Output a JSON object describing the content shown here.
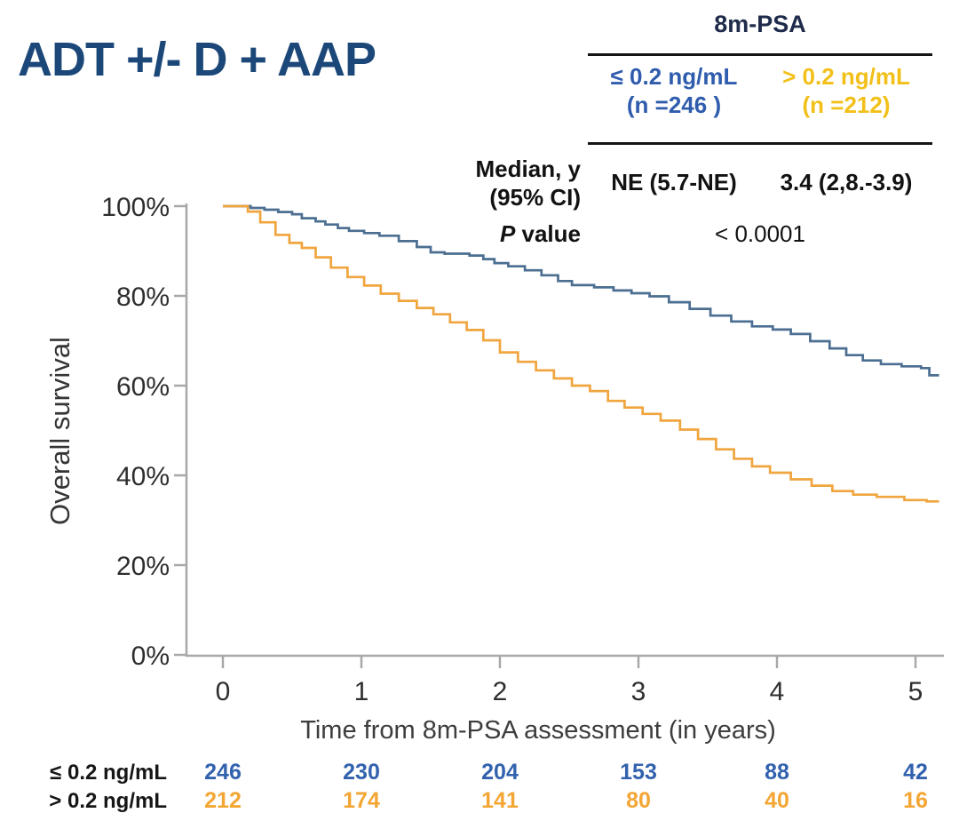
{
  "title": {
    "text": "ADT +/- D + AAP",
    "color": "#1c4879"
  },
  "summary_table": {
    "header": "8m-PSA",
    "header_color": "#1f2b4a",
    "columns": [
      {
        "range": "≤ 0.2 ng/mL",
        "n": "(n =246 )",
        "color": "#2f5cad"
      },
      {
        "range": "> 0.2 ng/mL",
        "n": "(n =212)",
        "color": "#f2c019"
      }
    ],
    "median_label_line1": "Median, y",
    "median_label_line2": "(95% CI)",
    "median_values": [
      "NE (5.7-NE)",
      "3.4 (2,8.-3.9)"
    ],
    "p_label_italic": "P",
    "p_label_rest": " value",
    "p_value": "< 0.0001"
  },
  "chart_data": {
    "type": "line",
    "subtype": "kaplan-meier-step",
    "title": "",
    "xlabel": "Time from 8m-PSA assessment (in years)",
    "ylabel": "Overall survival",
    "xlim": [
      0,
      5.2
    ],
    "ylim": [
      0,
      100
    ],
    "xticks": [
      0,
      1,
      2,
      3,
      4,
      5
    ],
    "yticks": [
      0,
      20,
      40,
      60,
      80,
      100
    ],
    "ytick_suffix": "%",
    "grid": false,
    "legend_position": "none",
    "axis_color": "#a8a8a8",
    "series": [
      {
        "name": "≤ 0.2 ng/mL",
        "color": "#4b6e91",
        "points": [
          [
            0,
            100
          ],
          [
            0.13,
            100
          ],
          [
            0.2,
            99.6
          ],
          [
            0.3,
            99.2
          ],
          [
            0.4,
            98.7
          ],
          [
            0.5,
            98.2
          ],
          [
            0.57,
            97.3
          ],
          [
            0.67,
            96.6
          ],
          [
            0.74,
            95.9
          ],
          [
            0.83,
            95.1
          ],
          [
            0.91,
            94.5
          ],
          [
            1.02,
            94.0
          ],
          [
            1.13,
            93.4
          ],
          [
            1.27,
            92.2
          ],
          [
            1.4,
            90.9
          ],
          [
            1.5,
            89.7
          ],
          [
            1.6,
            89.4
          ],
          [
            1.78,
            89.0
          ],
          [
            1.88,
            88.2
          ],
          [
            1.96,
            87.3
          ],
          [
            2.06,
            86.6
          ],
          [
            2.18,
            85.7
          ],
          [
            2.3,
            84.6
          ],
          [
            2.42,
            83.3
          ],
          [
            2.52,
            82.4
          ],
          [
            2.68,
            81.9
          ],
          [
            2.82,
            81.2
          ],
          [
            2.95,
            80.6
          ],
          [
            3.08,
            79.9
          ],
          [
            3.22,
            78.6
          ],
          [
            3.37,
            77.1
          ],
          [
            3.52,
            75.6
          ],
          [
            3.67,
            74.3
          ],
          [
            3.82,
            73.2
          ],
          [
            3.97,
            72.5
          ],
          [
            4.1,
            71.5
          ],
          [
            4.24,
            69.9
          ],
          [
            4.38,
            68.3
          ],
          [
            4.5,
            66.8
          ],
          [
            4.62,
            65.6
          ],
          [
            4.75,
            64.8
          ],
          [
            4.9,
            64.3
          ],
          [
            5.04,
            63.9
          ],
          [
            5.1,
            62.3
          ],
          [
            5.17,
            62.3
          ]
        ]
      },
      {
        "name": "> 0.2 ng/mL",
        "color": "#f0a53e",
        "points": [
          [
            0,
            100
          ],
          [
            0.12,
            100
          ],
          [
            0.18,
            98.8
          ],
          [
            0.27,
            96.4
          ],
          [
            0.38,
            93.6
          ],
          [
            0.48,
            91.8
          ],
          [
            0.57,
            90.7
          ],
          [
            0.67,
            88.6
          ],
          [
            0.78,
            86.3
          ],
          [
            0.9,
            84.2
          ],
          [
            1.02,
            82.3
          ],
          [
            1.14,
            80.5
          ],
          [
            1.27,
            78.9
          ],
          [
            1.4,
            77.3
          ],
          [
            1.52,
            75.9
          ],
          [
            1.64,
            74.1
          ],
          [
            1.76,
            72.4
          ],
          [
            1.88,
            70.1
          ],
          [
            2.0,
            67.4
          ],
          [
            2.13,
            65.3
          ],
          [
            2.26,
            63.4
          ],
          [
            2.39,
            61.6
          ],
          [
            2.52,
            60.0
          ],
          [
            2.65,
            58.8
          ],
          [
            2.78,
            56.6
          ],
          [
            2.9,
            55.1
          ],
          [
            3.03,
            53.7
          ],
          [
            3.16,
            52.2
          ],
          [
            3.3,
            50.2
          ],
          [
            3.43,
            48.1
          ],
          [
            3.56,
            45.8
          ],
          [
            3.69,
            43.7
          ],
          [
            3.82,
            42.0
          ],
          [
            3.95,
            40.6
          ],
          [
            4.1,
            39.1
          ],
          [
            4.25,
            37.7
          ],
          [
            4.4,
            36.5
          ],
          [
            4.55,
            35.7
          ],
          [
            4.72,
            35.2
          ],
          [
            4.92,
            34.5
          ],
          [
            5.08,
            34.2
          ],
          [
            5.17,
            34.2
          ]
        ]
      }
    ]
  },
  "risk_table": {
    "rows": [
      {
        "label": "≤ 0.2 ng/mL",
        "color": "#3262ae",
        "counts": [
          "246",
          "230",
          "204",
          "153",
          "88",
          "42"
        ]
      },
      {
        "label": "> 0.2 ng/mL",
        "color": "#f4a634",
        "counts": [
          "212",
          "174",
          "141",
          "80",
          "40",
          "16"
        ]
      }
    ]
  }
}
